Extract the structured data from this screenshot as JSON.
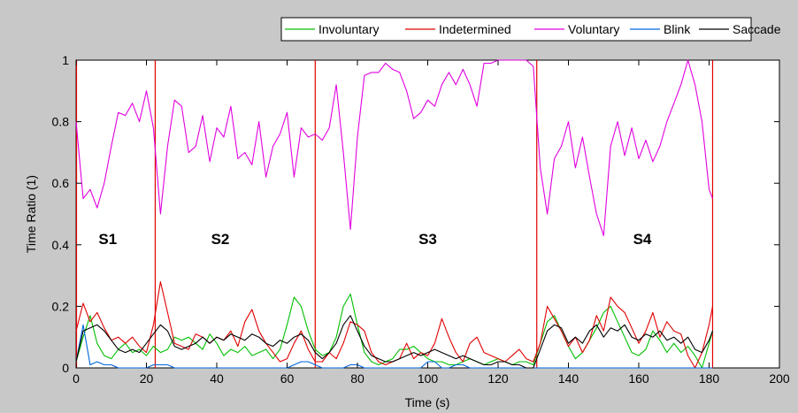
{
  "chart_data": {
    "type": "line",
    "title": "",
    "xlabel": "Time (s)",
    "ylabel": "Time Ratio (1)",
    "xlim": [
      0,
      200
    ],
    "ylim": [
      0,
      1
    ],
    "xticks": [
      "0",
      "20",
      "40",
      "60",
      "80",
      "100",
      "120",
      "140",
      "160",
      "180",
      "200"
    ],
    "yticks": [
      "0",
      "0.2",
      "0.4",
      "0.6",
      "0.8",
      "1"
    ],
    "legend_position": "top-center",
    "grid": false,
    "segment_boundaries": [
      0,
      22.5,
      68,
      131,
      181
    ],
    "segment_labels": [
      {
        "text": "S1",
        "x": 9,
        "y": 0.42
      },
      {
        "text": "S2",
        "x": 41,
        "y": 0.42
      },
      {
        "text": "S3",
        "x": 100,
        "y": 0.42
      },
      {
        "text": "S4",
        "x": 161,
        "y": 0.42
      }
    ],
    "series": [
      {
        "name": "Involuntary",
        "color": "#00c000",
        "x": [
          0,
          2,
          4,
          6,
          8,
          10,
          12,
          14,
          16,
          18,
          20,
          22,
          24,
          26,
          28,
          30,
          32,
          34,
          36,
          38,
          40,
          42,
          44,
          46,
          48,
          50,
          52,
          54,
          56,
          58,
          60,
          62,
          64,
          66,
          68,
          70,
          72,
          74,
          76,
          78,
          80,
          82,
          84,
          86,
          88,
          90,
          92,
          94,
          96,
          98,
          100,
          102,
          104,
          106,
          108,
          110,
          112,
          114,
          116,
          118,
          120,
          122,
          124,
          126,
          128,
          130,
          132,
          134,
          136,
          138,
          140,
          142,
          144,
          146,
          148,
          150,
          152,
          154,
          156,
          158,
          160,
          162,
          164,
          166,
          168,
          170,
          172,
          174,
          176,
          178,
          180,
          181
        ],
        "values": [
          0.02,
          0.1,
          0.17,
          0.08,
          0.04,
          0.03,
          0.06,
          0.08,
          0.05,
          0.06,
          0.04,
          0.07,
          0.05,
          0.06,
          0.1,
          0.09,
          0.1,
          0.08,
          0.06,
          0.11,
          0.08,
          0.04,
          0.06,
          0.05,
          0.07,
          0.04,
          0.05,
          0.06,
          0.03,
          0.06,
          0.14,
          0.23,
          0.2,
          0.12,
          0.06,
          0.04,
          0.05,
          0.1,
          0.2,
          0.24,
          0.14,
          0.05,
          0.02,
          0.01,
          0.02,
          0.03,
          0.06,
          0.06,
          0.07,
          0.05,
          0.03,
          0.02,
          0.02,
          0.01,
          0.01,
          0.02,
          0.03,
          0.02,
          0.01,
          0.02,
          0.03,
          0.02,
          0.01,
          0.02,
          0.02,
          0.01,
          0.08,
          0.15,
          0.17,
          0.12,
          0.07,
          0.03,
          0.05,
          0.09,
          0.13,
          0.18,
          0.2,
          0.15,
          0.1,
          0.05,
          0.04,
          0.06,
          0.12,
          0.09,
          0.05,
          0.08,
          0.05,
          0.07,
          0.04,
          0.0,
          0.08,
          0.12
        ]
      },
      {
        "name": "Indetermined",
        "color": "#e00000",
        "x": [
          0,
          2,
          4,
          6,
          8,
          10,
          12,
          14,
          16,
          18,
          20,
          22,
          24,
          26,
          28,
          30,
          32,
          34,
          36,
          38,
          40,
          42,
          44,
          46,
          48,
          50,
          52,
          54,
          56,
          58,
          60,
          62,
          64,
          66,
          68,
          70,
          72,
          74,
          76,
          78,
          80,
          82,
          84,
          86,
          88,
          90,
          92,
          94,
          96,
          98,
          100,
          102,
          104,
          106,
          108,
          110,
          112,
          114,
          116,
          118,
          120,
          122,
          124,
          126,
          128,
          130,
          132,
          134,
          136,
          138,
          140,
          142,
          144,
          146,
          148,
          150,
          152,
          154,
          156,
          158,
          160,
          162,
          164,
          166,
          168,
          170,
          172,
          174,
          176,
          178,
          180,
          181
        ],
        "values": [
          0.12,
          0.21,
          0.15,
          0.18,
          0.13,
          0.09,
          0.1,
          0.08,
          0.1,
          0.07,
          0.05,
          0.14,
          0.28,
          0.18,
          0.08,
          0.07,
          0.06,
          0.11,
          0.1,
          0.08,
          0.1,
          0.09,
          0.12,
          0.07,
          0.15,
          0.19,
          0.12,
          0.08,
          0.05,
          0.02,
          0.03,
          0.08,
          0.12,
          0.06,
          0.02,
          0.02,
          0.05,
          0.03,
          0.08,
          0.15,
          0.14,
          0.12,
          0.05,
          0.02,
          0.01,
          0.02,
          0.03,
          0.08,
          0.03,
          0.05,
          0.04,
          0.08,
          0.16,
          0.1,
          0.05,
          0.02,
          0.08,
          0.1,
          0.05,
          0.04,
          0.03,
          0.02,
          0.04,
          0.06,
          0.03,
          0.02,
          0.08,
          0.2,
          0.16,
          0.12,
          0.07,
          0.1,
          0.05,
          0.09,
          0.17,
          0.12,
          0.23,
          0.2,
          0.18,
          0.13,
          0.08,
          0.12,
          0.18,
          0.1,
          0.15,
          0.12,
          0.11,
          0.04,
          0.0,
          0.05,
          0.14,
          0.2
        ]
      },
      {
        "name": "Voluntary",
        "color": "#e000e0",
        "x": [
          0,
          2,
          4,
          6,
          8,
          10,
          12,
          14,
          16,
          18,
          20,
          22,
          24,
          26,
          28,
          30,
          32,
          34,
          36,
          38,
          40,
          42,
          44,
          46,
          48,
          50,
          52,
          54,
          56,
          58,
          60,
          62,
          64,
          66,
          68,
          70,
          72,
          74,
          76,
          78,
          80,
          82,
          84,
          86,
          88,
          90,
          92,
          94,
          96,
          98,
          100,
          102,
          104,
          106,
          108,
          110,
          112,
          114,
          116,
          118,
          120,
          122,
          124,
          126,
          128,
          130,
          132,
          134,
          136,
          138,
          140,
          142,
          144,
          146,
          148,
          150,
          152,
          154,
          156,
          158,
          160,
          162,
          164,
          166,
          168,
          170,
          172,
          174,
          176,
          178,
          180,
          181
        ],
        "values": [
          0.8,
          0.55,
          0.58,
          0.52,
          0.6,
          0.72,
          0.83,
          0.82,
          0.86,
          0.8,
          0.9,
          0.78,
          0.5,
          0.72,
          0.87,
          0.85,
          0.7,
          0.72,
          0.82,
          0.67,
          0.78,
          0.75,
          0.85,
          0.68,
          0.7,
          0.66,
          0.8,
          0.62,
          0.72,
          0.76,
          0.83,
          0.62,
          0.78,
          0.75,
          0.76,
          0.74,
          0.78,
          0.92,
          0.7,
          0.45,
          0.75,
          0.95,
          0.96,
          0.96,
          0.99,
          0.97,
          0.96,
          0.9,
          0.81,
          0.83,
          0.87,
          0.85,
          0.92,
          0.96,
          0.92,
          0.97,
          0.92,
          0.85,
          0.99,
          0.99,
          1.0,
          1.0,
          1.0,
          1.0,
          1.0,
          0.98,
          0.65,
          0.5,
          0.68,
          0.72,
          0.8,
          0.65,
          0.75,
          0.62,
          0.5,
          0.43,
          0.72,
          0.8,
          0.69,
          0.78,
          0.68,
          0.74,
          0.67,
          0.72,
          0.8,
          0.86,
          0.92,
          1.0,
          0.92,
          0.8,
          0.58,
          0.55
        ]
      },
      {
        "name": "Blink",
        "color": "#0066dd",
        "x": [
          0,
          2,
          4,
          6,
          8,
          10,
          12,
          14,
          20,
          22,
          24,
          26,
          28,
          30,
          60,
          64,
          66,
          68,
          70,
          72,
          76,
          78,
          80,
          82,
          98,
          100,
          102,
          104,
          106,
          108,
          110,
          112,
          181
        ],
        "values": [
          0.02,
          0.14,
          0.01,
          0.02,
          0.01,
          0.01,
          0.0,
          0.0,
          0.0,
          0.01,
          0.01,
          0.01,
          0.0,
          0.0,
          0.0,
          0.02,
          0.02,
          0.01,
          0.0,
          0.0,
          0.0,
          0.01,
          0.01,
          0.0,
          0.0,
          0.02,
          0.02,
          0.0,
          0.0,
          0.01,
          0.01,
          0.0,
          0.0
        ]
      },
      {
        "name": "Saccade",
        "color": "#000000",
        "x": [
          0,
          2,
          4,
          6,
          8,
          10,
          12,
          14,
          16,
          18,
          20,
          22,
          24,
          26,
          28,
          30,
          32,
          34,
          36,
          38,
          40,
          42,
          44,
          46,
          48,
          50,
          52,
          54,
          56,
          58,
          60,
          62,
          64,
          66,
          68,
          70,
          72,
          74,
          76,
          78,
          80,
          82,
          84,
          86,
          88,
          90,
          92,
          94,
          96,
          98,
          100,
          102,
          104,
          106,
          108,
          110,
          112,
          114,
          116,
          118,
          120,
          122,
          124,
          126,
          128,
          130,
          132,
          134,
          136,
          138,
          140,
          142,
          144,
          146,
          148,
          150,
          152,
          154,
          156,
          158,
          160,
          162,
          164,
          166,
          168,
          170,
          172,
          174,
          176,
          178,
          180,
          181
        ],
        "values": [
          0.02,
          0.12,
          0.13,
          0.14,
          0.12,
          0.09,
          0.06,
          0.05,
          0.06,
          0.05,
          0.08,
          0.11,
          0.14,
          0.12,
          0.07,
          0.06,
          0.07,
          0.08,
          0.1,
          0.08,
          0.1,
          0.09,
          0.11,
          0.1,
          0.09,
          0.11,
          0.1,
          0.08,
          0.07,
          0.09,
          0.08,
          0.1,
          0.11,
          0.09,
          0.05,
          0.03,
          0.05,
          0.08,
          0.14,
          0.17,
          0.12,
          0.07,
          0.04,
          0.03,
          0.02,
          0.02,
          0.03,
          0.04,
          0.05,
          0.04,
          0.05,
          0.06,
          0.05,
          0.04,
          0.03,
          0.04,
          0.03,
          0.02,
          0.01,
          0.01,
          0.02,
          0.02,
          0.01,
          0.01,
          0.0,
          0.0,
          0.06,
          0.12,
          0.14,
          0.13,
          0.08,
          0.1,
          0.08,
          0.12,
          0.14,
          0.1,
          0.13,
          0.12,
          0.14,
          0.1,
          0.09,
          0.11,
          0.1,
          0.12,
          0.09,
          0.1,
          0.08,
          0.1,
          0.06,
          0.05,
          0.09,
          0.12
        ]
      }
    ]
  }
}
